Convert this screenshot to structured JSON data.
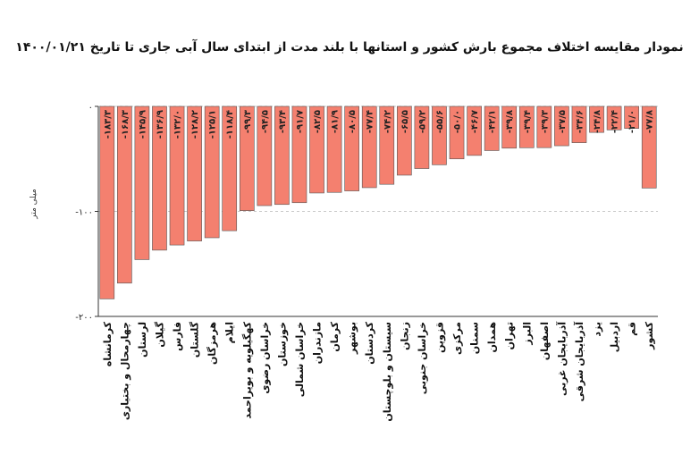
{
  "chart_data": {
    "type": "bar",
    "title": "نمودار مقایسه اختلاف مجموع بارش کشور و استانها با بلند مدت از ابتدای سال آبی جاری تا تاریخ ۱۴۰۰/۰۱/۲۱",
    "ylabel": "میلی متر",
    "xlabel": "",
    "ylim": [
      -200,
      0
    ],
    "y_ticks": [
      "۰",
      "-۱۰۰",
      "-۲۰۰"
    ],
    "grid": "horizontal dashed",
    "bar_color": "#f4806f",
    "categories": [
      "کرمانشاه",
      "چهارمحال و بختیاری",
      "لرستان",
      "گیلان",
      "فارس",
      "گلستان",
      "هرمزگان",
      "ایلام",
      "کهگیلویه و بویراحمد",
      "خراسان رضوی",
      "خوزستان",
      "خراسان شمالی",
      "مازندران",
      "کرمان",
      "بوشهر",
      "کردستان",
      "سیستان و بلوچستان",
      "زنجان",
      "خراسان جنوبی",
      "قزوین",
      "مرکزی",
      "سمنان",
      "همدان",
      "تهران",
      "البرز",
      "اصفهان",
      "آذربایجان غربی",
      "آذربایجان شرقی",
      "یزد",
      "اردبیل",
      "قم",
      "کشور"
    ],
    "values": [
      -183.3,
      -168.3,
      -145.9,
      -136.9,
      -132.0,
      -128.2,
      -125.1,
      -118.4,
      -99.3,
      -94.5,
      -93.4,
      -91.7,
      -82.5,
      -81.9,
      -80.5,
      -77.4,
      -74.2,
      -65.5,
      -59.2,
      -55.6,
      -50.0,
      -46.7,
      -42.1,
      -39.8,
      -39.4,
      -39.3,
      -37.5,
      -34.6,
      -24.8,
      -22.4,
      -21.0,
      -77.8
    ],
    "labels": [
      "-۱۸۳/۳",
      "-۱۶۸/۳",
      "-۱۴۵/۹",
      "-۱۳۶/۹",
      "-۱۳۲/۰",
      "-۱۲۸/۲",
      "-۱۲۵/۱",
      "-۱۱۸/۴",
      "-۹۹/۳",
      "-۹۴/۵",
      "-۹۳/۴",
      "-۹۱/۷",
      "-۸۲/۵",
      "-۸۱/۹",
      "-۸۰/۵",
      "-۷۷/۴",
      "-۷۴/۲",
      "-۶۵/۵",
      "-۵۹/۲",
      "-۵۵/۶",
      "-۵۰/۰",
      "-۴۶/۷",
      "-۴۲/۱",
      "-۳۹/۸",
      "-۳۹/۴",
      "-۳۹/۳",
      "-۳۷/۵",
      "-۳۴/۶",
      "-۲۴/۸",
      "-۲۲/۴",
      "-۲۱/۰",
      "-۷۷/۸"
    ]
  }
}
